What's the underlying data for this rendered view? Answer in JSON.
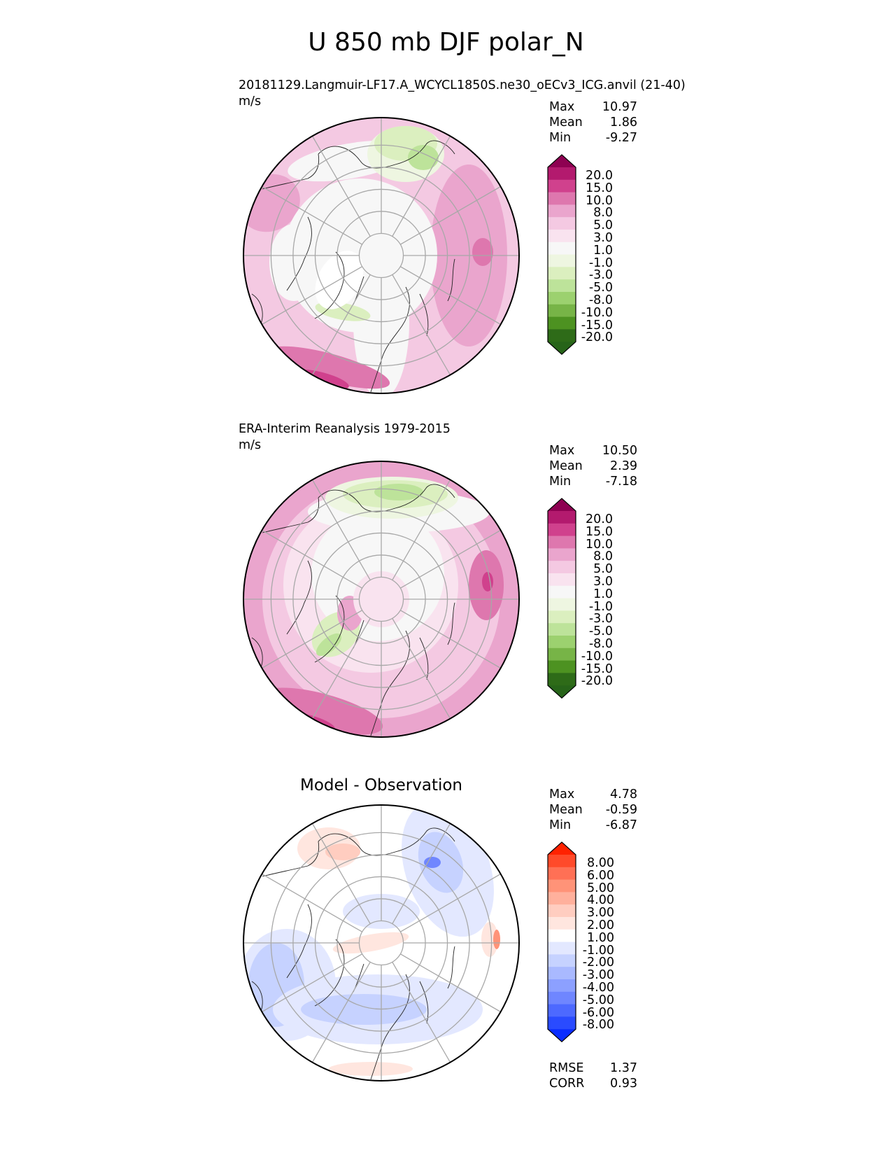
{
  "title": "U 850 mb DJF polar_N",
  "panels": [
    {
      "subtitle": "20181129.Langmuir-LF17.A_WCYCL1850S.ne30_oECv3_ICG.anvil (21-40)",
      "units": "m/s",
      "stats": [
        {
          "label": "Max",
          "value": "10.97"
        },
        {
          "label": "Mean",
          "value": "1.86"
        },
        {
          "label": "Min",
          "value": "-9.27"
        }
      ],
      "colorbar_labels": [
        "20.0",
        "15.0",
        "10.0",
        "8.0",
        "5.0",
        "3.0",
        "1.0",
        "-1.0",
        "-3.0",
        "-5.0",
        "-8.0",
        "-10.0",
        "-15.0",
        "-20.0"
      ],
      "colorbar_colors": [
        "#8e0152",
        "#b31a6e",
        "#d0418d",
        "#de77ae",
        "#eaa5cd",
        "#f4c9e2",
        "#f9e3ef",
        "#f7f7f7",
        "#eef6e1",
        "#dbefbf",
        "#bde39a",
        "#9cd16f",
        "#77b447",
        "#4d9221",
        "#2e6b18",
        "#276419"
      ],
      "field": "model"
    },
    {
      "subtitle": "ERA-Interim Reanalysis 1979-2015",
      "units": "m/s",
      "stats": [
        {
          "label": "Max",
          "value": "10.50"
        },
        {
          "label": "Mean",
          "value": "2.39"
        },
        {
          "label": "Min",
          "value": "-7.18"
        }
      ],
      "colorbar_labels": [
        "20.0",
        "15.0",
        "10.0",
        "8.0",
        "5.0",
        "3.0",
        "1.0",
        "-1.0",
        "-3.0",
        "-5.0",
        "-8.0",
        "-10.0",
        "-15.0",
        "-20.0"
      ],
      "colorbar_colors": [
        "#8e0152",
        "#b31a6e",
        "#d0418d",
        "#de77ae",
        "#eaa5cd",
        "#f4c9e2",
        "#f9e3ef",
        "#f7f7f7",
        "#eef6e1",
        "#dbefbf",
        "#bde39a",
        "#9cd16f",
        "#77b447",
        "#4d9221",
        "#2e6b18",
        "#276419"
      ],
      "field": "obs"
    },
    {
      "subtitle": "Model - Observation",
      "units": "",
      "stats": [
        {
          "label": "Max",
          "value": "4.78"
        },
        {
          "label": "Mean",
          "value": "-0.59"
        },
        {
          "label": "Min",
          "value": "-6.87"
        }
      ],
      "extra_stats": [
        {
          "label": "RMSE",
          "value": "1.37"
        },
        {
          "label": "CORR",
          "value": "0.93"
        }
      ],
      "colorbar_labels": [
        "8.00",
        "6.00",
        "5.00",
        "4.00",
        "3.00",
        "2.00",
        "1.00",
        "-1.00",
        "-2.00",
        "-3.00",
        "-4.00",
        "-5.00",
        "-6.00",
        "-8.00"
      ],
      "colorbar_colors": [
        "#ff2200",
        "#ff4a2a",
        "#ff7055",
        "#ff9378",
        "#ffb09c",
        "#ffcdc0",
        "#ffe6df",
        "#ffffff",
        "#e3e8ff",
        "#c6d2ff",
        "#a9b9ff",
        "#8ca0ff",
        "#6f86ff",
        "#4d69ff",
        "#2a4bff",
        "#0a2dff"
      ],
      "field": "diff"
    }
  ]
}
